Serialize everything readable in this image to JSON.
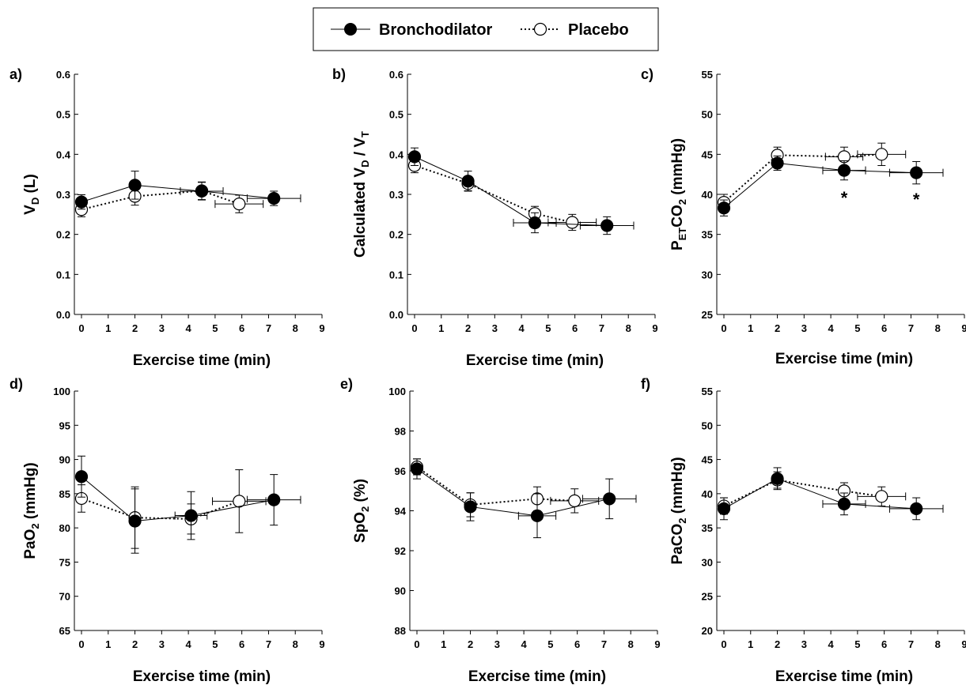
{
  "legend": {
    "bronchodilator": "Bronchodilator",
    "placebo": "Placebo"
  },
  "chart_data": [
    {
      "type": "line",
      "panel_label": "a)",
      "ylabel_main": "V",
      "ylabel_sub": "D",
      "ylabel_rest": " (L)",
      "xlabel": "Exercise time (min)",
      "xlim": [
        0,
        9
      ],
      "xticks": [
        "0",
        "1",
        "2",
        "3",
        "4",
        "5",
        "6",
        "7",
        "8",
        "9"
      ],
      "ylim": [
        0.0,
        0.6
      ],
      "yticks": [
        "0.0",
        "0.1",
        "0.2",
        "0.3",
        "0.4",
        "0.5",
        "0.6"
      ],
      "series": [
        {
          "name": "Bronchodilator",
          "style": "filled",
          "points": [
            {
              "x": 0,
              "y": 0.281,
              "yerr": 0.018
            },
            {
              "x": 2,
              "y": 0.323,
              "yerr": 0.035
            },
            {
              "x": 4.5,
              "y": 0.308,
              "yerr": 0.022,
              "xerr": 0.8
            },
            {
              "x": 7.2,
              "y": 0.29,
              "yerr": 0.018,
              "xerr": 1.0
            }
          ]
        },
        {
          "name": "Placebo",
          "style": "open",
          "points": [
            {
              "x": 0,
              "y": 0.262,
              "yerr": 0.018
            },
            {
              "x": 2,
              "y": 0.295,
              "yerr": 0.022
            },
            {
              "x": 4.5,
              "y": 0.309,
              "yerr": 0.022
            },
            {
              "x": 5.9,
              "y": 0.276,
              "yerr": 0.022,
              "xerr": 0.9
            }
          ]
        }
      ],
      "annotations": []
    },
    {
      "type": "line",
      "panel_label": "b)",
      "ylabel_main": "Calculated V",
      "ylabel_sub": "D",
      "ylabel_rest": " / V",
      "ylabel_sub2": "T",
      "xlabel": "Exercise time (min)",
      "xlim": [
        0,
        9
      ],
      "xticks": [
        "0",
        "1",
        "2",
        "3",
        "4",
        "5",
        "6",
        "7",
        "8",
        "9"
      ],
      "ylim": [
        0.0,
        0.6
      ],
      "yticks": [
        "0.0",
        "0.1",
        "0.2",
        "0.3",
        "0.4",
        "0.5",
        "0.6"
      ],
      "series": [
        {
          "name": "Bronchodilator",
          "style": "filled",
          "points": [
            {
              "x": 0,
              "y": 0.394,
              "yerr": 0.022
            },
            {
              "x": 2,
              "y": 0.333,
              "yerr": 0.025
            },
            {
              "x": 4.5,
              "y": 0.229,
              "yerr": 0.025,
              "xerr": 0.8
            },
            {
              "x": 7.2,
              "y": 0.222,
              "yerr": 0.022,
              "xerr": 1.0
            }
          ]
        },
        {
          "name": "Placebo",
          "style": "open",
          "points": [
            {
              "x": 0,
              "y": 0.372,
              "yerr": 0.018
            },
            {
              "x": 2,
              "y": 0.327,
              "yerr": 0.018
            },
            {
              "x": 4.5,
              "y": 0.252,
              "yerr": 0.018
            },
            {
              "x": 5.9,
              "y": 0.23,
              "yerr": 0.02,
              "xerr": 0.9
            }
          ]
        }
      ],
      "annotations": []
    },
    {
      "type": "line",
      "panel_label": "c)",
      "ylabel_main": "P",
      "ylabel_sub": "ET",
      "ylabel_rest": "CO",
      "ylabel_sub2": "2",
      "ylabel_tail": " (mmHg)",
      "xlabel": "Exercise time (min)",
      "xlim": [
        0,
        9
      ],
      "xticks": [
        "0",
        "1",
        "2",
        "3",
        "4",
        "5",
        "6",
        "7",
        "8",
        "9"
      ],
      "ylim": [
        25,
        55
      ],
      "yticks": [
        "25",
        "30",
        "35",
        "40",
        "45",
        "50",
        "55"
      ],
      "series": [
        {
          "name": "Bronchodilator",
          "style": "filled",
          "points": [
            {
              "x": 0,
              "y": 38.3,
              "yerr": 1.0
            },
            {
              "x": 2,
              "y": 43.9,
              "yerr": 0.9
            },
            {
              "x": 4.5,
              "y": 43.0,
              "yerr": 1.2,
              "xerr": 0.8
            },
            {
              "x": 7.2,
              "y": 42.7,
              "yerr": 1.4,
              "xerr": 1.0
            }
          ]
        },
        {
          "name": "Placebo",
          "style": "open",
          "points": [
            {
              "x": 0,
              "y": 39.0,
              "yerr": 1.0
            },
            {
              "x": 2,
              "y": 44.9,
              "yerr": 1.0
            },
            {
              "x": 4.5,
              "y": 44.7,
              "yerr": 1.2,
              "xerr": 0.7
            },
            {
              "x": 5.9,
              "y": 45.0,
              "yerr": 1.4,
              "xerr": 0.9
            }
          ]
        }
      ],
      "annotations": [
        {
          "x": 4.5,
          "y": 39.8,
          "text": "*"
        },
        {
          "x": 7.2,
          "y": 39.6,
          "text": "*"
        }
      ]
    },
    {
      "type": "line",
      "panel_label": "d)",
      "ylabel_main": "PaO",
      "ylabel_sub": "2",
      "ylabel_rest": " (mmHg)",
      "xlabel": "Exercise time (min)",
      "xlim": [
        0,
        9
      ],
      "xticks": [
        "0",
        "1",
        "2",
        "3",
        "4",
        "5",
        "6",
        "7",
        "8",
        "9"
      ],
      "ylim": [
        65,
        100
      ],
      "yticks": [
        "65",
        "70",
        "75",
        "80",
        "85",
        "90",
        "95",
        "100"
      ],
      "series": [
        {
          "name": "Bronchodilator",
          "style": "filled",
          "points": [
            {
              "x": 0,
              "y": 87.5,
              "yerr": 3.0
            },
            {
              "x": 2,
              "y": 81.0,
              "yerr": 4.7
            },
            {
              "x": 4.1,
              "y": 81.8,
              "yerr": 3.5,
              "xerr": 0.6
            },
            {
              "x": 7.2,
              "y": 84.1,
              "yerr": 3.7,
              "xerr": 1.0
            }
          ]
        },
        {
          "name": "Placebo",
          "style": "open",
          "points": [
            {
              "x": 0,
              "y": 84.3,
              "yerr": 2.0
            },
            {
              "x": 2,
              "y": 81.5,
              "yerr": 4.5
            },
            {
              "x": 4.1,
              "y": 81.3,
              "yerr": 2.2
            },
            {
              "x": 5.9,
              "y": 83.9,
              "yerr": 4.6,
              "xerr": 1.0
            }
          ]
        }
      ],
      "annotations": []
    },
    {
      "type": "line",
      "panel_label": "e)",
      "ylabel_main": "SpO",
      "ylabel_sub": "2",
      "ylabel_rest": " (%)",
      "xlabel": "Exercise time (min)",
      "xlim": [
        0,
        9
      ],
      "xticks": [
        "0",
        "1",
        "2",
        "3",
        "4",
        "5",
        "6",
        "7",
        "8",
        "9"
      ],
      "ylim": [
        88,
        100
      ],
      "yticks": [
        "88",
        "90",
        "92",
        "94",
        "96",
        "98",
        "100"
      ],
      "series": [
        {
          "name": "Bronchodilator",
          "style": "filled",
          "points": [
            {
              "x": 0,
              "y": 96.1,
              "yerr": 0.5
            },
            {
              "x": 2,
              "y": 94.2,
              "yerr": 0.7
            },
            {
              "x": 4.5,
              "y": 93.75,
              "yerr": 1.1,
              "xerr": 0.7
            },
            {
              "x": 7.2,
              "y": 94.6,
              "yerr": 1.0,
              "xerr": 1.0
            }
          ]
        },
        {
          "name": "Placebo",
          "style": "open",
          "points": [
            {
              "x": 0,
              "y": 96.2,
              "yerr": 0.4
            },
            {
              "x": 2,
              "y": 94.3,
              "yerr": 0.6
            },
            {
              "x": 4.5,
              "y": 94.6,
              "yerr": 0.6
            },
            {
              "x": 5.9,
              "y": 94.5,
              "yerr": 0.6,
              "xerr": 0.9
            }
          ]
        }
      ],
      "annotations": []
    },
    {
      "type": "line",
      "panel_label": "f)",
      "ylabel_main": "PaCO",
      "ylabel_sub": "2",
      "ylabel_rest": " (mmHg)",
      "xlabel": "Exercise time (min)",
      "xlim": [
        0,
        9
      ],
      "xticks": [
        "0",
        "1",
        "2",
        "3",
        "4",
        "5",
        "6",
        "7",
        "8",
        "9"
      ],
      "ylim": [
        20,
        55
      ],
      "yticks": [
        "20",
        "25",
        "30",
        "35",
        "40",
        "45",
        "50",
        "55"
      ],
      "series": [
        {
          "name": "Bronchodilator",
          "style": "filled",
          "points": [
            {
              "x": 0,
              "y": 37.8,
              "yerr": 1.6
            },
            {
              "x": 2,
              "y": 42.2,
              "yerr": 1.6
            },
            {
              "x": 4.5,
              "y": 38.5,
              "yerr": 1.6,
              "xerr": 0.8
            },
            {
              "x": 7.2,
              "y": 37.8,
              "yerr": 1.6,
              "xerr": 1.0
            }
          ]
        },
        {
          "name": "Placebo",
          "style": "open",
          "points": [
            {
              "x": 0,
              "y": 38.2,
              "yerr": 1.2
            },
            {
              "x": 2,
              "y": 42.0,
              "yerr": 1.2
            },
            {
              "x": 4.5,
              "y": 40.4,
              "yerr": 1.2
            },
            {
              "x": 5.9,
              "y": 39.6,
              "yerr": 1.4,
              "xerr": 0.9
            }
          ]
        }
      ],
      "annotations": []
    }
  ]
}
